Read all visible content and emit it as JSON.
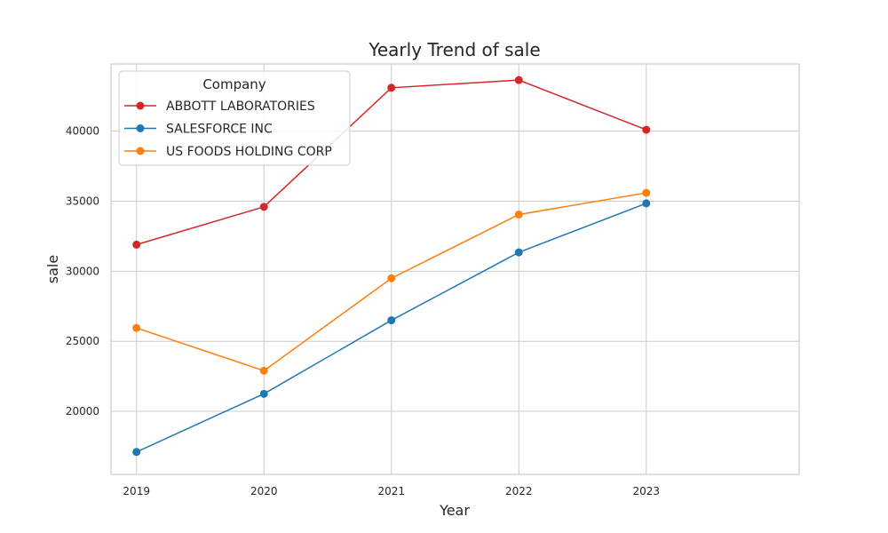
{
  "chart_data": {
    "type": "line",
    "title": "Yearly Trend of sale",
    "xlabel": "Year",
    "ylabel": "sale",
    "x": [
      2019,
      2020,
      2021,
      2022,
      2023
    ],
    "xlim": [
      2018.8,
      2024.2
    ],
    "ylim": [
      15500,
      44800
    ],
    "y_ticks": [
      20000,
      25000,
      30000,
      35000,
      40000
    ],
    "grid": true,
    "legend": {
      "title": "Company",
      "placement": "top-left"
    },
    "series": [
      {
        "name": "ABBOTT LABORATORIES",
        "color": "#d62728",
        "values": [
          31900,
          34600,
          43100,
          43650,
          40100
        ]
      },
      {
        "name": "SALESFORCE INC",
        "color": "#1f77b4",
        "values": [
          17100,
          21250,
          26500,
          31350,
          34850
        ]
      },
      {
        "name": "US FOODS HOLDING CORP",
        "color": "#ff7f0e",
        "values": [
          25950,
          22900,
          29500,
          34050,
          35600
        ]
      }
    ]
  }
}
